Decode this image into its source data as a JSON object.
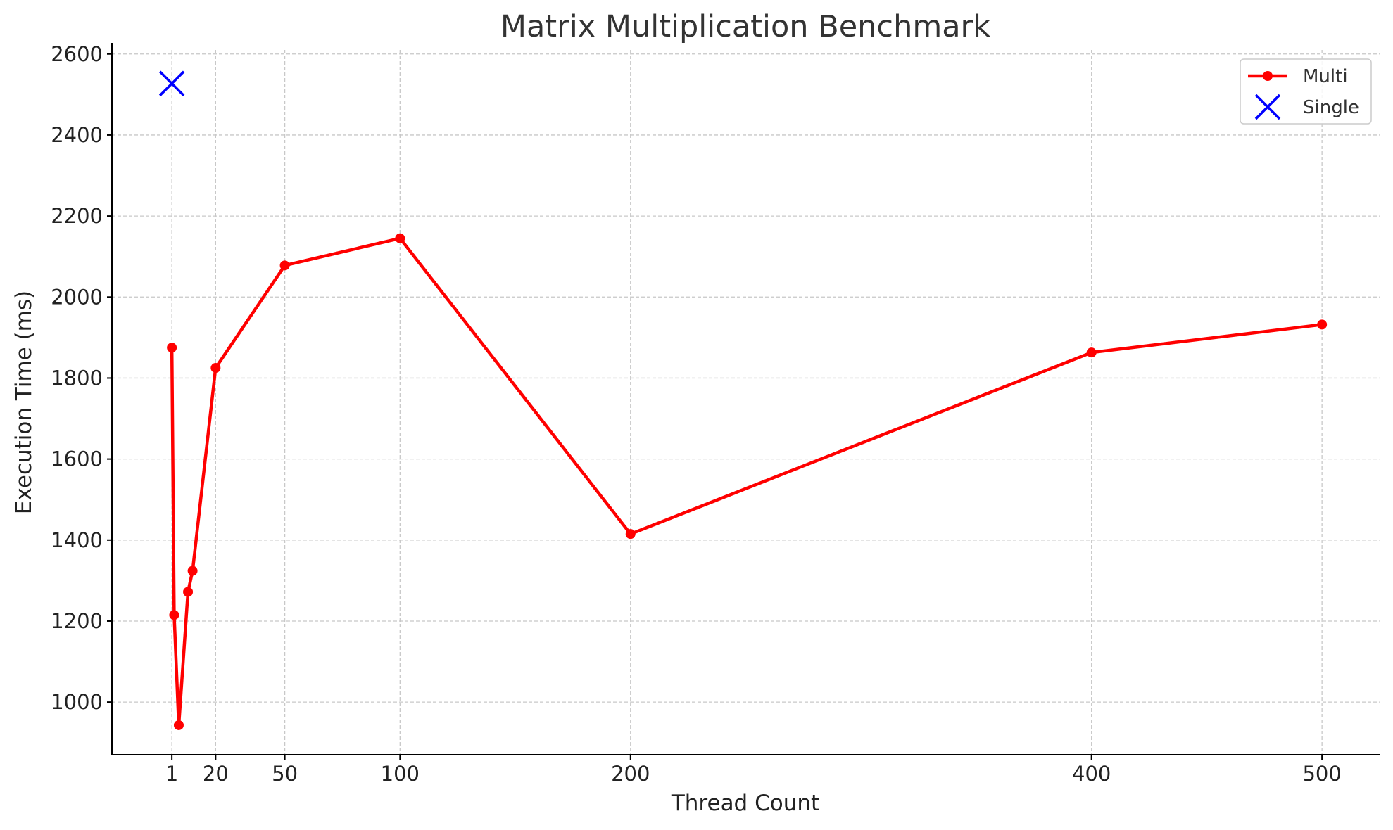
{
  "chart_data": {
    "type": "line",
    "title": "Matrix Multiplication Benchmark",
    "xlabel": "Thread Count",
    "ylabel": "Execution Time (ms)",
    "xlim": [
      -25,
      525
    ],
    "ylim": [
      870,
      2610
    ],
    "xticks": [
      1,
      20,
      50,
      100,
      200,
      400,
      500
    ],
    "yticks": [
      1000,
      1200,
      1400,
      1600,
      1800,
      2000,
      2200,
      2400,
      2600
    ],
    "grid": true,
    "legend_position": "top-right",
    "series": [
      {
        "name": "Multi",
        "marker": "circle",
        "color": "#ff0000",
        "points": [
          {
            "x": 1,
            "y": 1875
          },
          {
            "x": 2,
            "y": 1215
          },
          {
            "x": 4,
            "y": 943
          },
          {
            "x": 8,
            "y": 1272
          },
          {
            "x": 10,
            "y": 1324
          },
          {
            "x": 20,
            "y": 1825
          },
          {
            "x": 50,
            "y": 2078
          },
          {
            "x": 100,
            "y": 2145
          },
          {
            "x": 200,
            "y": 1415
          },
          {
            "x": 400,
            "y": 1863
          },
          {
            "x": 500,
            "y": 1932
          }
        ]
      },
      {
        "name": "Single",
        "marker": "x",
        "color": "#0000ff",
        "points": [
          {
            "x": 1,
            "y": 2527
          }
        ]
      }
    ]
  }
}
